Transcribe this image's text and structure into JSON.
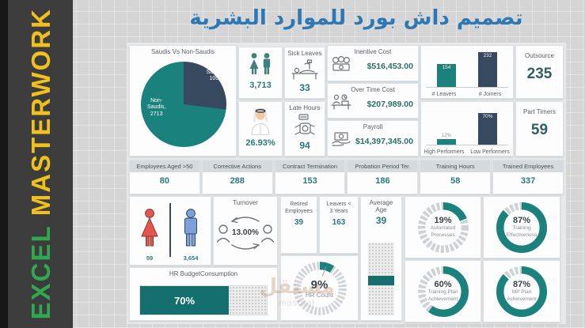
{
  "header": {
    "title_ar": "تصميم داش بورد للموارد البشرية",
    "title_color": "#2e78b5"
  },
  "sidebar": {
    "word1": "EXCEL",
    "word2": "MASTERWORK",
    "word1_color": "#2fa84f",
    "word2_color": "#f0c11c"
  },
  "colors": {
    "teal": "#1b817d",
    "navy": "#36495f",
    "number_teal": "#2b7a76",
    "dashed_gray": "#ccd1d6"
  },
  "pie": {
    "title": "Saudis Vs Non-Saudis",
    "slices": [
      {
        "name": "Saudis",
        "value": 1000,
        "label": "Saudis,\n1000",
        "color": "#36495f"
      },
      {
        "name": "Non-Saudis",
        "value": 2713,
        "label": "Non-\nSaudis,\n2713",
        "color": "#1b817d"
      }
    ]
  },
  "top_kpis": {
    "headcount": {
      "value": "3,713"
    },
    "sick": {
      "title": "Sick Leaves",
      "value": "33"
    },
    "saudization": {
      "value": "26.93%"
    },
    "late": {
      "title": "Late Hours",
      "value": "94"
    }
  },
  "costs": [
    {
      "title": "Inentive Cost",
      "value": "$516,453.00"
    },
    {
      "title": "Over Time Cost",
      "value": "$207,989.00"
    },
    {
      "title": "Payroll",
      "value": "$14,397,345.00"
    }
  ],
  "movement_chart": {
    "type": "bar",
    "max": 245,
    "bars": [
      {
        "label": "# Leavers",
        "value": 154,
        "display": "154",
        "color": "teal"
      },
      {
        "label": "# Joiners",
        "value": 232,
        "display": "232",
        "color": "navy"
      }
    ]
  },
  "performance_chart": {
    "type": "bar",
    "max": 80,
    "bars": [
      {
        "label": "High Performers",
        "value": 12,
        "display": "12%",
        "color": "teal"
      },
      {
        "label": "Low Performers",
        "value": 70,
        "display": "70%",
        "color": "navy"
      }
    ]
  },
  "right_kpis": [
    {
      "title": "Outsource",
      "value": "235"
    },
    {
      "title": "Part Timers",
      "value": "59"
    }
  ],
  "kpi_row": [
    {
      "label": "Employees Aged >50",
      "value": "80"
    },
    {
      "label": "Corrective Actions",
      "value": "288"
    },
    {
      "label": "Contract Termination",
      "value": "153"
    },
    {
      "label": "Probation Period Ter.",
      "value": "186"
    },
    {
      "label": "Training Hours",
      "value": "58"
    },
    {
      "label": "Trained Employees",
      "value": "337"
    }
  ],
  "gender": {
    "female_value": "59",
    "male_value": "3,654"
  },
  "turnover": {
    "title": "Turnover",
    "value": "13.00%"
  },
  "mid_kpis": [
    {
      "label": "Retired\nEmployees",
      "value": "39"
    },
    {
      "label": "Leavers <\n3 Years",
      "value": "163"
    }
  ],
  "hr_count": {
    "value": 9,
    "display": "9%",
    "label": "HR Count"
  },
  "average_age": {
    "label": "Average\nAge",
    "value": "39"
  },
  "budget": {
    "label": "HR BudgetConsumption",
    "value": 70,
    "display": "70%"
  },
  "donuts": [
    {
      "value": 19,
      "display": "19%",
      "label": "Automated\nProcesses"
    },
    {
      "value": 87,
      "display": "87%",
      "label": "Training\nEffectiveness"
    },
    {
      "value": 60,
      "display": "60%",
      "label": "Training Plan\nAchievement"
    },
    {
      "value": 87,
      "display": "87%",
      "label": "MP Plan\nAchievement"
    }
  ],
  "watermark": {
    "arabic": "مستقل",
    "latin": "mostaql"
  },
  "chart_data": [
    {
      "type": "pie",
      "title": "Saudis Vs Non-Saudis",
      "categories": [
        "Saudis",
        "Non-Saudis"
      ],
      "values": [
        1000,
        2713
      ]
    },
    {
      "type": "bar",
      "categories": [
        "# Leavers",
        "# Joiners"
      ],
      "values": [
        154,
        232
      ]
    },
    {
      "type": "bar",
      "categories": [
        "High Performers",
        "Low Performers"
      ],
      "values": [
        12,
        70
      ],
      "unit": "%"
    },
    {
      "type": "pie",
      "title": "HR Count",
      "values": [
        9
      ],
      "unit": "%"
    },
    {
      "type": "pie",
      "title": "gauges",
      "categories": [
        "Automated Processes",
        "Training Effectiveness",
        "Training Plan Achievement",
        "MP Plan Achievement"
      ],
      "values": [
        19,
        87,
        60,
        87
      ],
      "unit": "%"
    },
    {
      "type": "bar",
      "title": "HR BudgetConsumption",
      "values": [
        70
      ],
      "unit": "%"
    }
  ]
}
